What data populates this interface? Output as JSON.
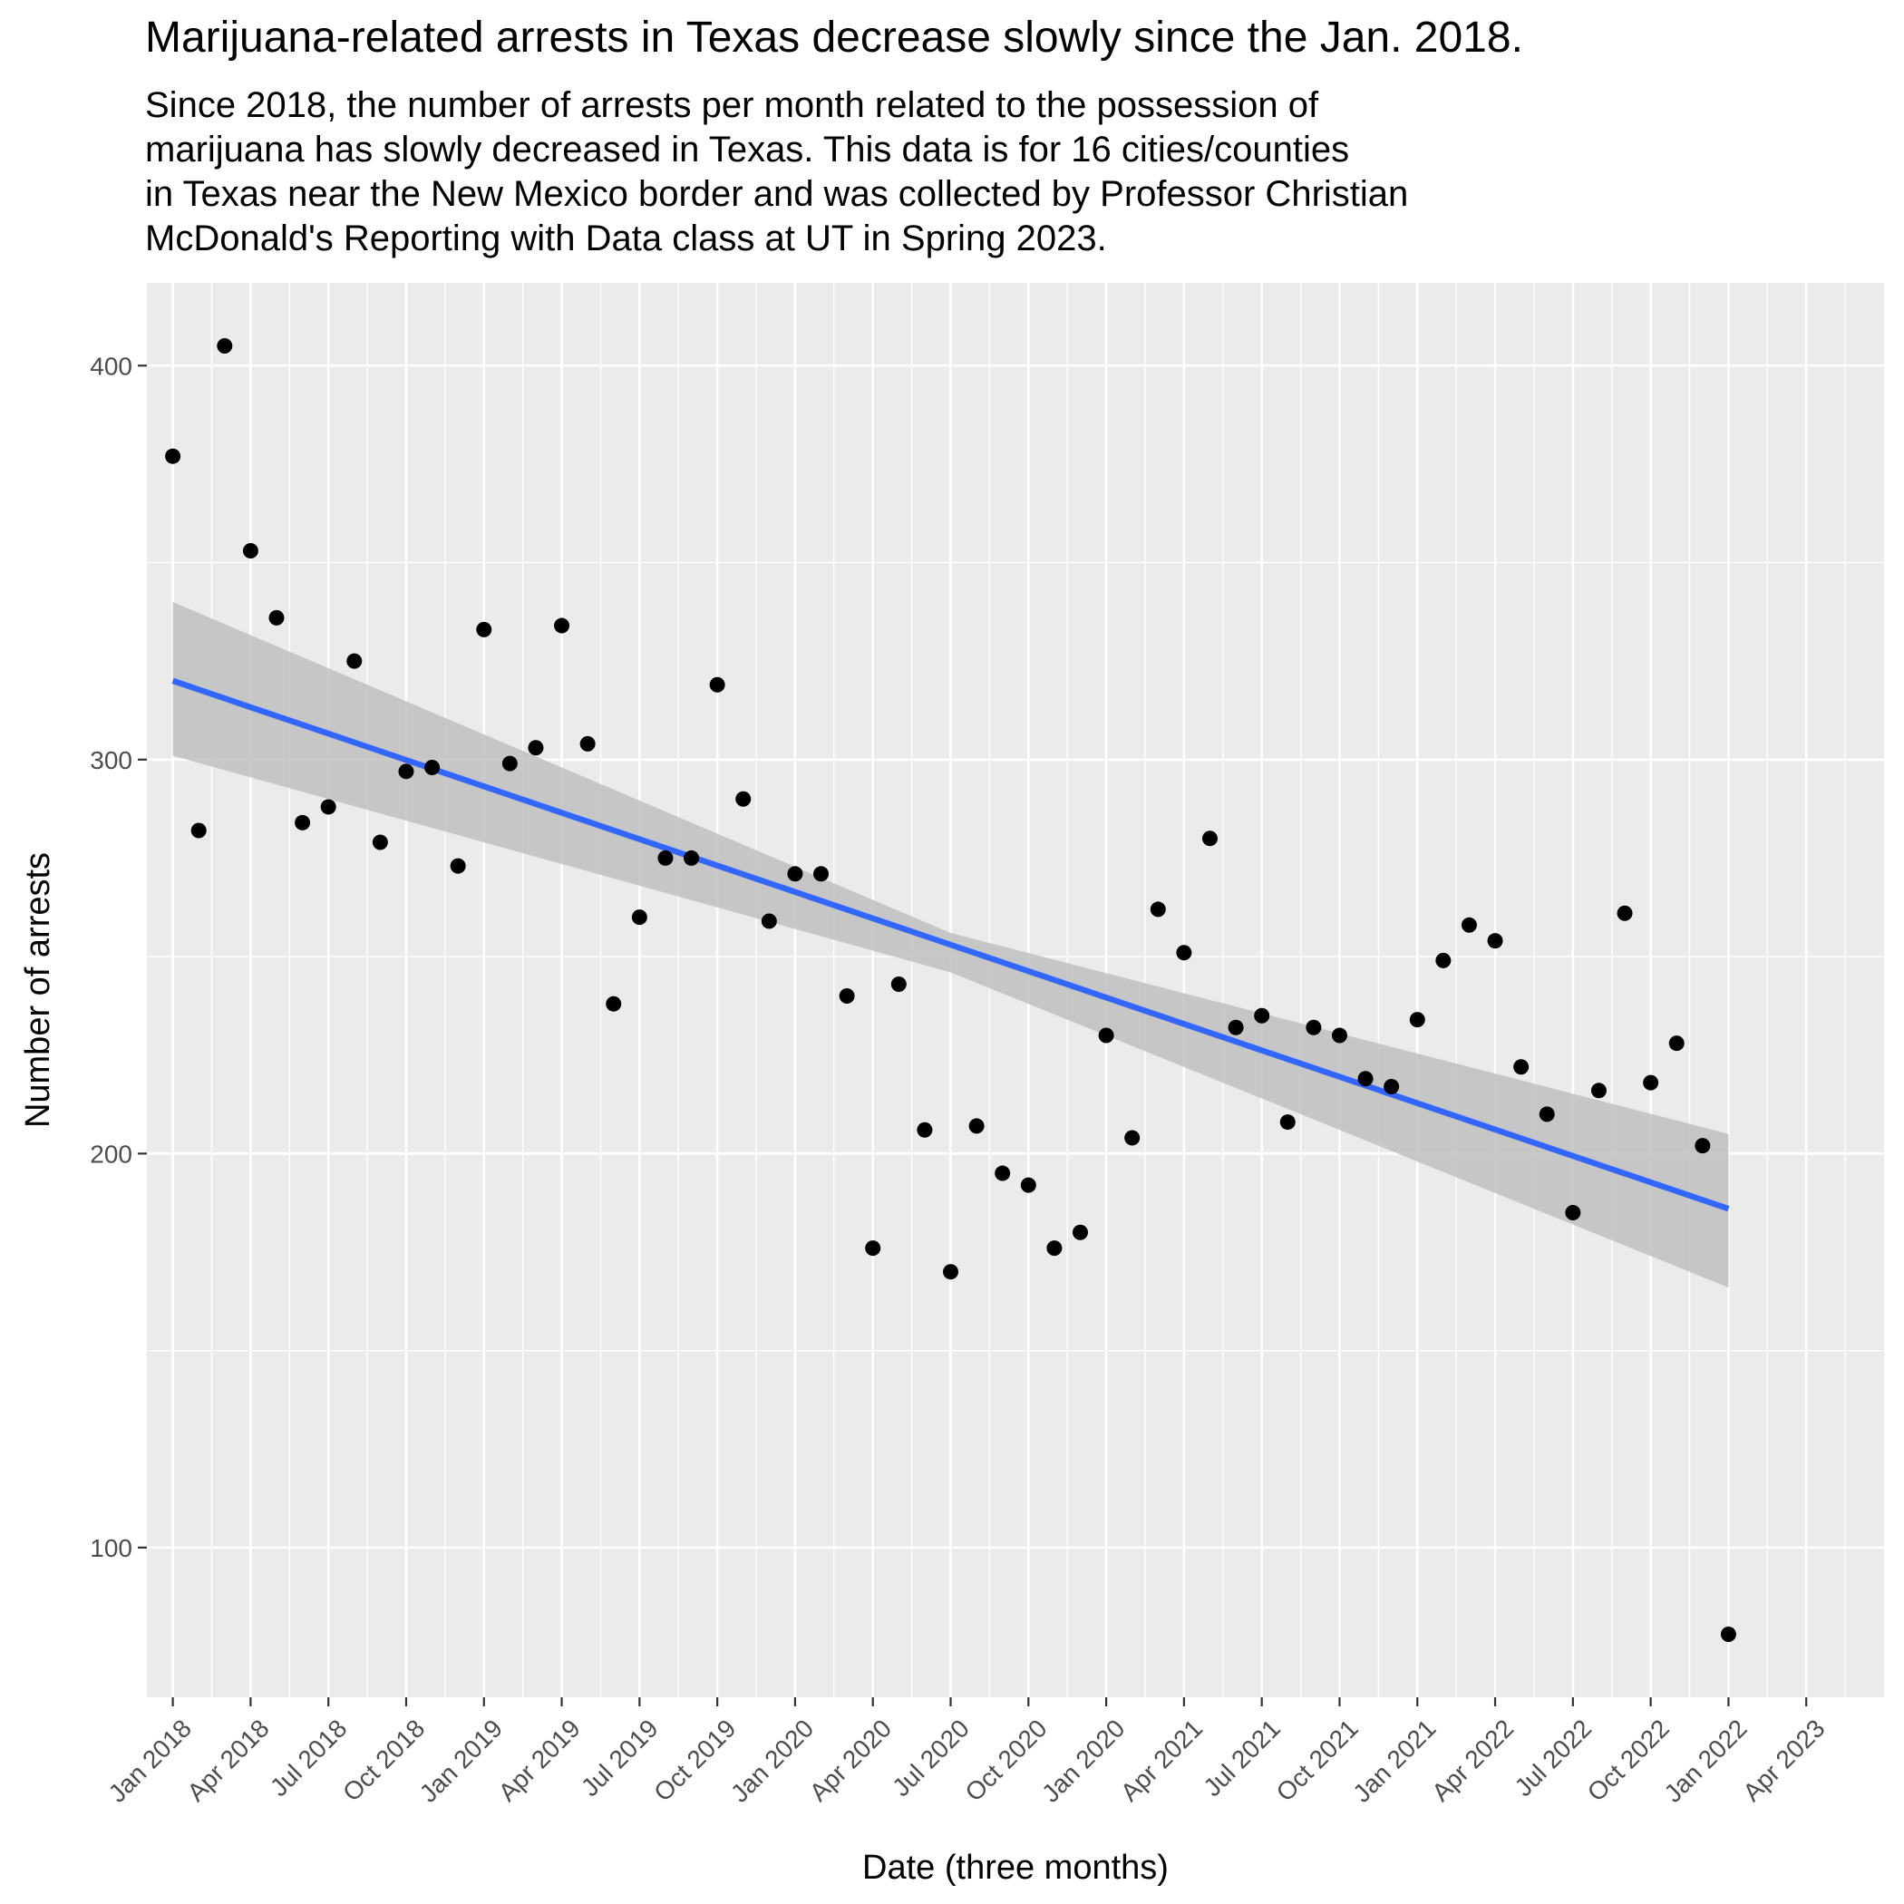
{
  "chart_data": {
    "type": "scatter",
    "title": "Marijuana-related arrests in Texas decrease slowly since the Jan. 2018.",
    "subtitle": "Since 2018, the number of arrests per month related to the possession of\nmarijuana has slowly decreased in Texas. This data is for 16 cities/counties\nin Texas near the New Mexico border and was collected by Professor Christian\nMcDonald's Reporting with Data class at UT in Spring 2023.",
    "xlabel": "Date (three months)",
    "ylabel": "Number of arrests",
    "xlim": [
      -1,
      66
    ],
    "ylim": [
      62,
      421
    ],
    "x_tick_labels": [
      "Jan 2018",
      "Apr 2018",
      "Jul 2018",
      "Oct 2018",
      "Jan 2019",
      "Apr 2019",
      "Jul 2019",
      "Oct 2019",
      "Jan 2020",
      "Apr 2020",
      "Jul 2020",
      "Oct 2020",
      "Jan 2020",
      "Apr 2021",
      "Jul 2021",
      "Oct 2021",
      "Jan 2021",
      "Apr 2022",
      "Jul 2022",
      "Oct 2022",
      "Jan 2022",
      "Apr 2023"
    ],
    "y_ticks": [
      100,
      200,
      300,
      400
    ],
    "grid": true,
    "points": [
      {
        "x": 0,
        "y": 377
      },
      {
        "x": 1,
        "y": 282
      },
      {
        "x": 2,
        "y": 405
      },
      {
        "x": 3,
        "y": 353
      },
      {
        "x": 4,
        "y": 336
      },
      {
        "x": 5,
        "y": 284
      },
      {
        "x": 6,
        "y": 288
      },
      {
        "x": 7,
        "y": 325
      },
      {
        "x": 8,
        "y": 279
      },
      {
        "x": 9,
        "y": 297
      },
      {
        "x": 10,
        "y": 298
      },
      {
        "x": 11,
        "y": 273
      },
      {
        "x": 12,
        "y": 333
      },
      {
        "x": 13,
        "y": 299
      },
      {
        "x": 14,
        "y": 303
      },
      {
        "x": 15,
        "y": 334
      },
      {
        "x": 16,
        "y": 304
      },
      {
        "x": 17,
        "y": 238
      },
      {
        "x": 18,
        "y": 260
      },
      {
        "x": 19,
        "y": 275
      },
      {
        "x": 20,
        "y": 275
      },
      {
        "x": 21,
        "y": 319
      },
      {
        "x": 22,
        "y": 290
      },
      {
        "x": 23,
        "y": 259
      },
      {
        "x": 24,
        "y": 271
      },
      {
        "x": 25,
        "y": 271
      },
      {
        "x": 26,
        "y": 240
      },
      {
        "x": 27,
        "y": 176
      },
      {
        "x": 28,
        "y": 243
      },
      {
        "x": 29,
        "y": 206
      },
      {
        "x": 30,
        "y": 170
      },
      {
        "x": 31,
        "y": 207
      },
      {
        "x": 32,
        "y": 195
      },
      {
        "x": 33,
        "y": 192
      },
      {
        "x": 34,
        "y": 176
      },
      {
        "x": 35,
        "y": 180
      },
      {
        "x": 36,
        "y": 230
      },
      {
        "x": 37,
        "y": 204
      },
      {
        "x": 38,
        "y": 262
      },
      {
        "x": 39,
        "y": 251
      },
      {
        "x": 40,
        "y": 280
      },
      {
        "x": 41,
        "y": 232
      },
      {
        "x": 42,
        "y": 235
      },
      {
        "x": 43,
        "y": 208
      },
      {
        "x": 44,
        "y": 232
      },
      {
        "x": 45,
        "y": 230
      },
      {
        "x": 46,
        "y": 219
      },
      {
        "x": 47,
        "y": 217
      },
      {
        "x": 48,
        "y": 234
      },
      {
        "x": 49,
        "y": 249
      },
      {
        "x": 50,
        "y": 258
      },
      {
        "x": 51,
        "y": 254
      },
      {
        "x": 52,
        "y": 222
      },
      {
        "x": 53,
        "y": 210
      },
      {
        "x": 54,
        "y": 185
      },
      {
        "x": 55,
        "y": 216
      },
      {
        "x": 56,
        "y": 261
      },
      {
        "x": 57,
        "y": 218
      },
      {
        "x": 58,
        "y": 228
      },
      {
        "x": 59,
        "y": 202
      },
      {
        "x": 60,
        "y": 78
      }
    ],
    "trend_line": {
      "x": [
        0,
        60
      ],
      "y": [
        320,
        186
      ],
      "color": "#3366ff"
    },
    "confidence_band": {
      "x": [
        0,
        30,
        60
      ],
      "lower": [
        301,
        246,
        166
      ],
      "upper": [
        340,
        256,
        205
      ],
      "color": "#c0c0c0"
    },
    "colors": {
      "panel": "#ebebeb",
      "grid": "#ffffff",
      "point": "#000000"
    }
  }
}
